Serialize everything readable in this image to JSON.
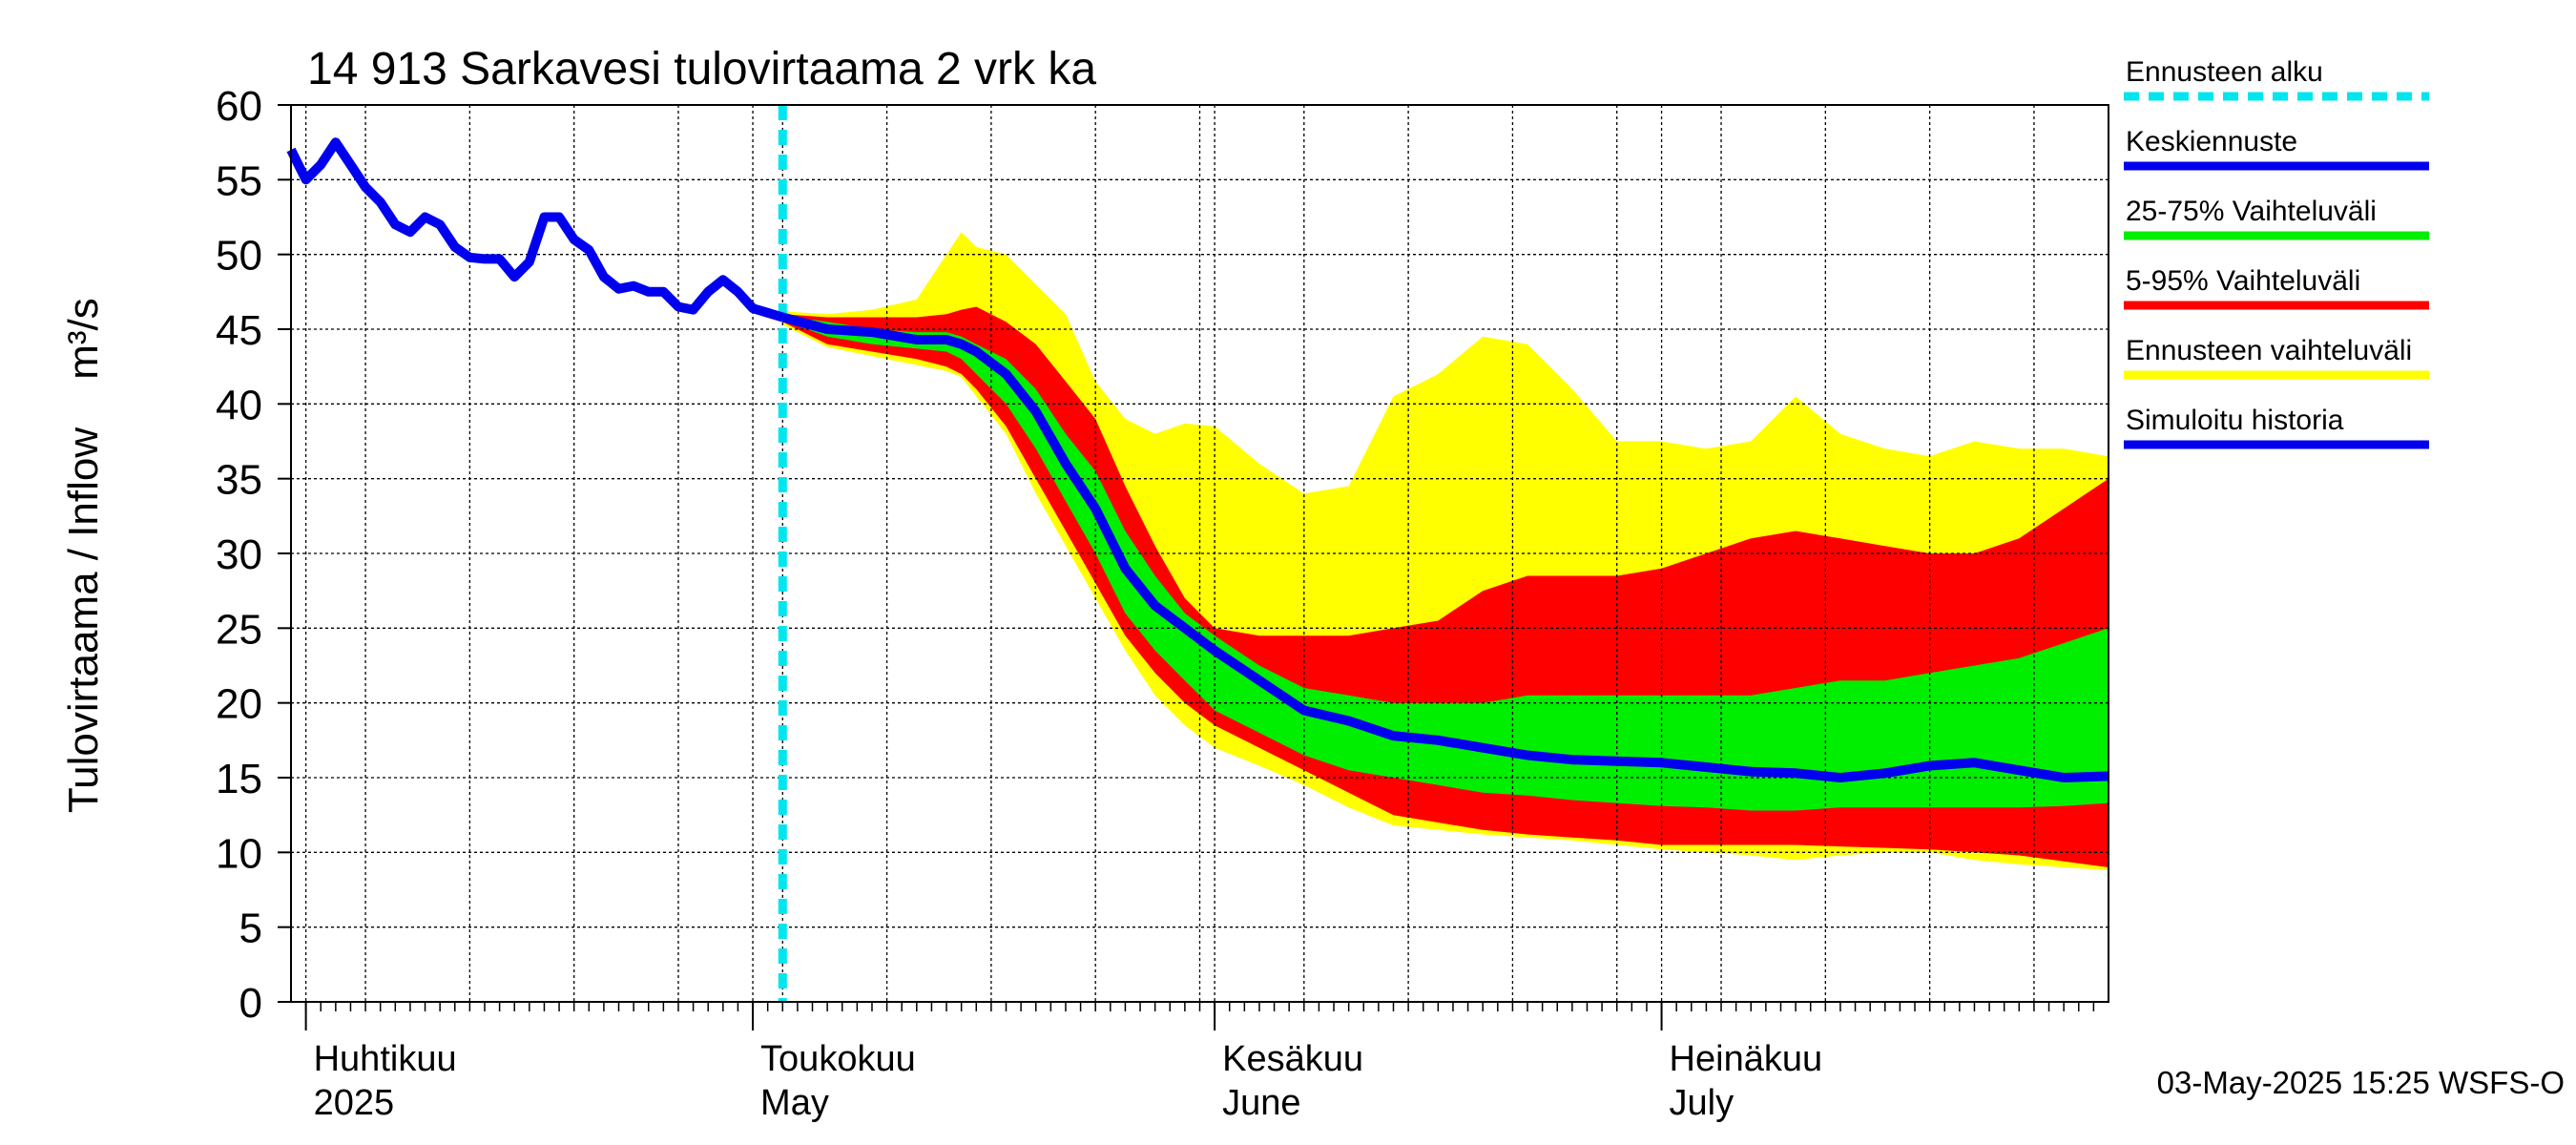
{
  "chart_data": {
    "type": "area",
    "title": "14 913 Sarkavesi tulovirtaama 2 vrk ka",
    "ylabel": "Tulovirtaama / Inflow",
    "yunit": "m³/s",
    "ylim": [
      0,
      60
    ],
    "yticks": [
      0,
      5,
      10,
      15,
      20,
      25,
      30,
      35,
      40,
      45,
      50,
      55,
      60
    ],
    "xlim": [
      "2025-03-31",
      "2025-07-31"
    ],
    "grid": true,
    "legend_position": "right",
    "forecast_start": "2025-05-03",
    "month_labels": [
      {
        "date": "2025-04-01",
        "fi": "Huhtikuu",
        "en": "2025"
      },
      {
        "date": "2025-05-01",
        "fi": "Toukokuu",
        "en": "May"
      },
      {
        "date": "2025-06-01",
        "fi": "Kesäkuu",
        "en": "June"
      },
      {
        "date": "2025-07-01",
        "fi": "Heinäkuu",
        "en": "July"
      }
    ],
    "timestamp": "03-May-2025 15:25 WSFS-O",
    "legend": [
      {
        "label": "Ennusteen alku",
        "color": "#00e5ee",
        "style": "dashed"
      },
      {
        "label": "Keskiennuste",
        "color": "#0000ee",
        "style": "line"
      },
      {
        "label": "25-75% Vaihteluväli",
        "color": "#00ee00",
        "style": "line"
      },
      {
        "label": "5-95% Vaihteluväli",
        "color": "#ff0000",
        "style": "line"
      },
      {
        "label": "Ennusteen vaihteluväli",
        "color": "#ffff00",
        "style": "line"
      },
      {
        "label": "Simuloitu historia",
        "color": "#0000ee",
        "style": "line"
      }
    ],
    "history": {
      "x": [
        "2025-03-31",
        "2025-04-01",
        "2025-04-02",
        "2025-04-03",
        "2025-04-04",
        "2025-04-05",
        "2025-04-06",
        "2025-04-07",
        "2025-04-08",
        "2025-04-09",
        "2025-04-10",
        "2025-04-11",
        "2025-04-12",
        "2025-04-13",
        "2025-04-14",
        "2025-04-15",
        "2025-04-16",
        "2025-04-17",
        "2025-04-18",
        "2025-04-19",
        "2025-04-20",
        "2025-04-21",
        "2025-04-22",
        "2025-04-23",
        "2025-04-24",
        "2025-04-25",
        "2025-04-26",
        "2025-04-27",
        "2025-04-28",
        "2025-04-29",
        "2025-04-30",
        "2025-05-01",
        "2025-05-02",
        "2025-05-03"
      ],
      "y": [
        57.0,
        55.0,
        56.0,
        57.5,
        56.0,
        54.5,
        53.5,
        52.0,
        51.5,
        52.5,
        52.0,
        50.5,
        49.8,
        49.7,
        49.7,
        48.5,
        49.5,
        52.5,
        52.5,
        51.0,
        50.3,
        48.5,
        47.7,
        47.9,
        47.5,
        47.5,
        46.5,
        46.3,
        47.5,
        48.3,
        47.5,
        46.4,
        46.1,
        45.8
      ]
    },
    "forecast": {
      "x": [
        "2025-05-03",
        "2025-05-06",
        "2025-05-09",
        "2025-05-12",
        "2025-05-14",
        "2025-05-15",
        "2025-05-16",
        "2025-05-18",
        "2025-05-20",
        "2025-05-22",
        "2025-05-24",
        "2025-05-26",
        "2025-05-28",
        "2025-05-30",
        "2025-06-01",
        "2025-06-04",
        "2025-06-07",
        "2025-06-10",
        "2025-06-13",
        "2025-06-16",
        "2025-06-19",
        "2025-06-22",
        "2025-06-25",
        "2025-06-28",
        "2025-07-01",
        "2025-07-04",
        "2025-07-07",
        "2025-07-10",
        "2025-07-13",
        "2025-07-16",
        "2025-07-19",
        "2025-07-22",
        "2025-07-25",
        "2025-07-28",
        "2025-07-31"
      ],
      "median": [
        45.8,
        45.0,
        44.8,
        44.3,
        44.3,
        44.0,
        43.5,
        42.0,
        39.5,
        36.0,
        33.0,
        29.0,
        26.5,
        25.0,
        23.5,
        21.5,
        19.5,
        18.8,
        17.8,
        17.5,
        17.0,
        16.5,
        16.2,
        16.1,
        16.0,
        15.7,
        15.4,
        15.3,
        15.0,
        15.3,
        15.8,
        16.0,
        15.5,
        15.0,
        15.1
      ],
      "p25": [
        45.6,
        44.5,
        44.0,
        43.7,
        43.5,
        43.0,
        42.0,
        40.0,
        37.0,
        33.5,
        30.0,
        26.0,
        23.5,
        21.5,
        19.5,
        18.0,
        16.5,
        15.5,
        15.0,
        14.5,
        14.0,
        13.8,
        13.5,
        13.3,
        13.1,
        13.0,
        12.8,
        12.8,
        13.0,
        13.0,
        13.0,
        13.0,
        13.0,
        13.1,
        13.3
      ],
      "p75": [
        45.9,
        45.5,
        45.0,
        44.8,
        44.8,
        44.5,
        44.0,
        43.0,
        41.0,
        38.0,
        35.5,
        31.5,
        28.5,
        26.0,
        24.5,
        22.5,
        21.0,
        20.5,
        20.0,
        20.0,
        20.0,
        20.5,
        20.5,
        20.5,
        20.5,
        20.5,
        20.5,
        21.0,
        21.5,
        21.5,
        22.0,
        22.5,
        23.0,
        24.0,
        25.0
      ],
      "p05": [
        45.5,
        44.0,
        43.5,
        43.0,
        42.5,
        42.0,
        41.0,
        38.5,
        35.0,
        31.5,
        28.0,
        24.5,
        22.0,
        20.0,
        18.5,
        17.0,
        15.5,
        14.0,
        12.5,
        12.0,
        11.5,
        11.2,
        11.0,
        10.8,
        10.5,
        10.5,
        10.5,
        10.5,
        10.4,
        10.3,
        10.2,
        10.0,
        9.8,
        9.4,
        9.0
      ],
      "p95": [
        46.0,
        45.8,
        45.8,
        45.8,
        46.0,
        46.3,
        46.5,
        45.5,
        44.0,
        41.5,
        39.0,
        34.5,
        30.5,
        27.0,
        25.0,
        24.5,
        24.5,
        24.5,
        25.0,
        25.5,
        27.5,
        28.5,
        28.5,
        28.5,
        29.0,
        30.0,
        31.0,
        31.5,
        31.0,
        30.5,
        30.0,
        30.0,
        31.0,
        33.0,
        35.0
      ],
      "min": [
        45.3,
        43.8,
        43.2,
        42.6,
        42.2,
        41.8,
        40.5,
        38.0,
        34.0,
        30.5,
        27.0,
        23.5,
        20.5,
        18.5,
        17.0,
        15.8,
        14.5,
        13.0,
        11.8,
        11.5,
        11.2,
        11.0,
        10.8,
        10.5,
        10.2,
        10.0,
        9.8,
        9.5,
        9.8,
        10.0,
        10.0,
        9.5,
        9.2,
        9.0,
        8.8
      ],
      "max": [
        46.2,
        46.0,
        46.3,
        47.0,
        50.0,
        51.5,
        50.5,
        50.0,
        48.0,
        46.0,
        41.5,
        39.0,
        38.0,
        38.7,
        38.5,
        36.0,
        34.0,
        34.5,
        40.5,
        42.0,
        44.5,
        44.0,
        41.0,
        37.5,
        37.5,
        37.0,
        37.5,
        40.5,
        38.0,
        37.0,
        36.5,
        37.5,
        37.0,
        37.0,
        36.5
      ]
    }
  }
}
